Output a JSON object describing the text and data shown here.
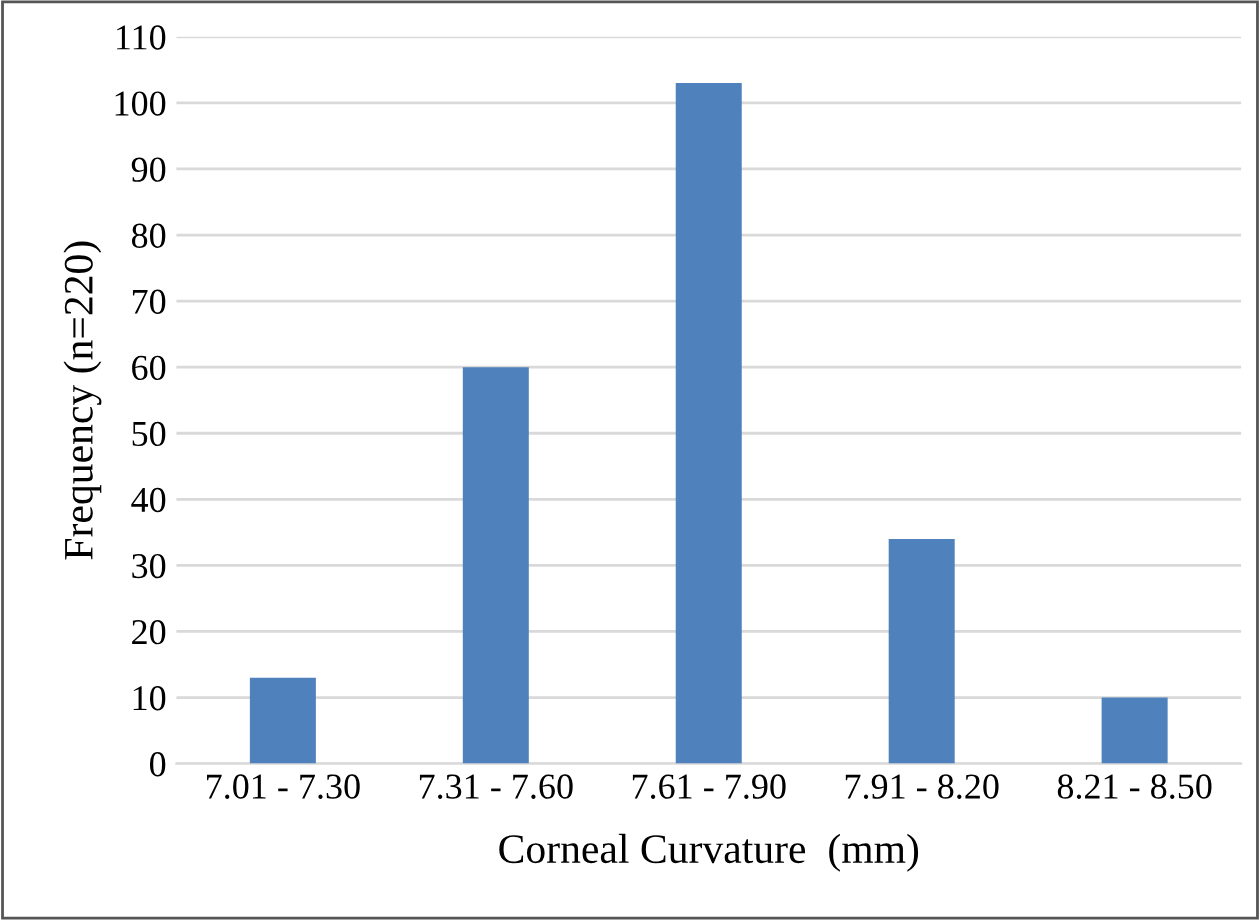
{
  "chart_data": {
    "type": "bar",
    "xlabel": "Corneal Curvature  (mm)",
    "ylabel": "Frequency (n=220)",
    "categories": [
      "7.01 - 7.30",
      "7.31 - 7.60",
      "7.61 - 7.90",
      "7.91 - 8.20",
      "8.21 - 8.50"
    ],
    "values": [
      13,
      60,
      103,
      34,
      10
    ],
    "color": "#4f81bd",
    "ylim": [
      0,
      110
    ],
    "yticks": [
      0,
      10,
      20,
      30,
      40,
      50,
      60,
      70,
      80,
      90,
      100,
      110
    ],
    "grid": "y",
    "legend": false
  }
}
